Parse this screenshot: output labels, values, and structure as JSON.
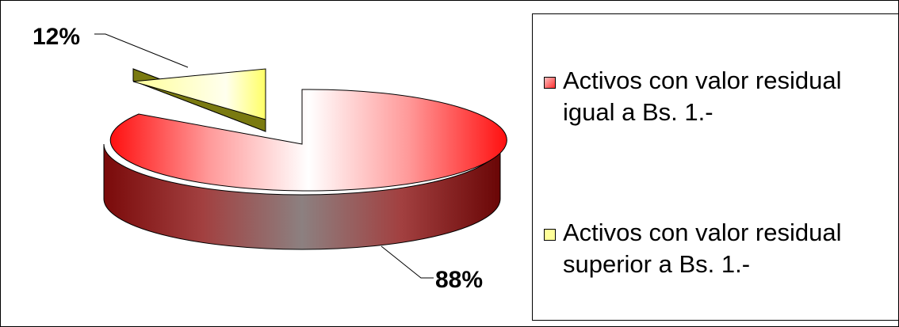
{
  "chart_data": {
    "type": "pie",
    "style": "3d-exploded",
    "slices": [
      {
        "label": "Activos con valor residual igual a Bs. 1.-",
        "value": 88,
        "display": "88%",
        "color": "#ff0000"
      },
      {
        "label": "Activos con valor residual superior a Bs. 1.-",
        "value": 12,
        "display": "12%",
        "color": "#ffff99"
      }
    ],
    "legend_placement": "right"
  },
  "legend": [
    {
      "line1": "Activos con valor residual",
      "line2": "igual a Bs. 1.-",
      "swatch": "#ff5050"
    },
    {
      "line1": "Activos con valor residual",
      "line2": "superior a Bs. 1.-",
      "swatch": "#ffff99"
    }
  ]
}
